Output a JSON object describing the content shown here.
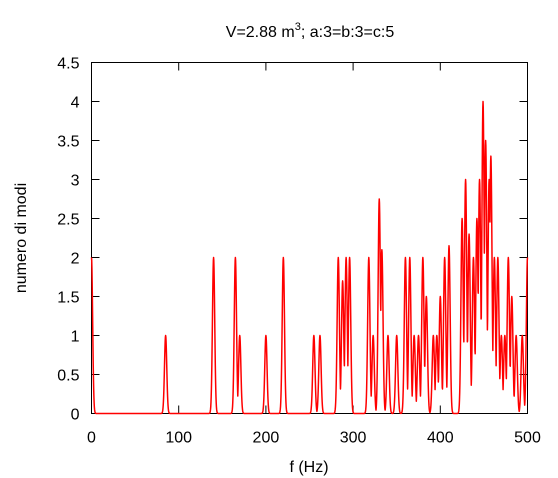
{
  "chart_data": {
    "type": "line",
    "title": "V=2.88 m",
    "title_sup": "3",
    "title_suffix": "; a:3=b:3=c:5",
    "xlabel": "f (Hz)",
    "ylabel": "numero di modi",
    "xlim": [
      0,
      500
    ],
    "ylim": [
      0,
      4.5
    ],
    "xticks": [
      "0",
      "100",
      "200",
      "300",
      "400",
      "500"
    ],
    "yticks": [
      "0",
      "0.5",
      "1",
      "1.5",
      "2",
      "2.5",
      "3",
      "3.5",
      "4",
      "4.5"
    ],
    "grid": false,
    "legend": "none",
    "series_color": "#ff0000",
    "peaks": [
      [
        0,
        2
      ],
      [
        85,
        1
      ],
      [
        140,
        2
      ],
      [
        165,
        2
      ],
      [
        170,
        1
      ],
      [
        200,
        1
      ],
      [
        220,
        2
      ],
      [
        255,
        1
      ],
      [
        262,
        1
      ],
      [
        283,
        2
      ],
      [
        288,
        1.7
      ],
      [
        292,
        2
      ],
      [
        296,
        2
      ],
      [
        318,
        2
      ],
      [
        323,
        1
      ],
      [
        330,
        2.75
      ],
      [
        333,
        2.1
      ],
      [
        340,
        1
      ],
      [
        350,
        1
      ],
      [
        360,
        2
      ],
      [
        365,
        2
      ],
      [
        370,
        1
      ],
      [
        375,
        1
      ],
      [
        380,
        2
      ],
      [
        384,
        1.5
      ],
      [
        392,
        1
      ],
      [
        396,
        1
      ],
      [
        400,
        1.5
      ],
      [
        405,
        2
      ],
      [
        410,
        2.15
      ],
      [
        425,
        2.5
      ],
      [
        429,
        3
      ],
      [
        433,
        2.3
      ],
      [
        438,
        2
      ],
      [
        442,
        2.5
      ],
      [
        445,
        3
      ],
      [
        449,
        4
      ],
      [
        452,
        3.5
      ],
      [
        456,
        3
      ],
      [
        458,
        3.3
      ],
      [
        462,
        2
      ],
      [
        466,
        2
      ],
      [
        470,
        1
      ],
      [
        474,
        1
      ],
      [
        478,
        2
      ],
      [
        482,
        1.5
      ],
      [
        487,
        1
      ],
      [
        494,
        1
      ],
      [
        500,
        2
      ]
    ]
  }
}
